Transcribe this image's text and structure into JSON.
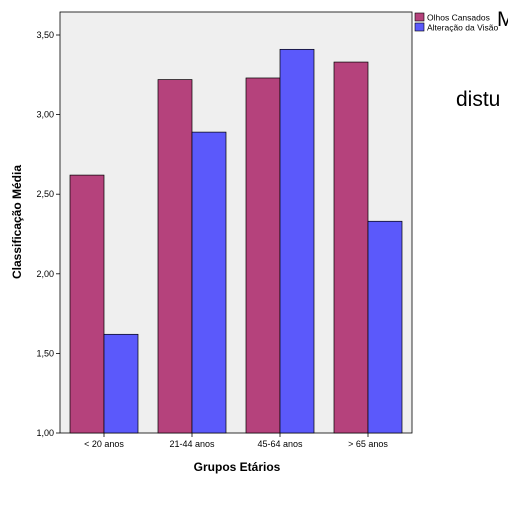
{
  "chart_data": {
    "type": "bar",
    "categories": [
      "< 20 anos",
      "21-44 anos",
      "45-64 anos",
      "> 65 anos"
    ],
    "series": [
      {
        "name": "Olhos Cansados",
        "values": [
          2.62,
          3.22,
          3.23,
          3.33
        ],
        "color": "#b5427c"
      },
      {
        "name": "Alteração da Visão",
        "values": [
          1.62,
          2.89,
          3.41,
          2.33
        ],
        "color": "#5b59fb"
      }
    ],
    "xlabel": "Grupos Etários",
    "ylabel": "Classificação Média",
    "ylim": [
      1.0,
      3.5
    ],
    "yticks": [
      "1,00",
      "1,50",
      "2,00",
      "2,50",
      "3,00",
      "3,50"
    ],
    "legend_position": "top-right",
    "grid": false,
    "plot_background": "#efefef"
  },
  "overflow_text": {
    "top": "M",
    "middle": "distu"
  }
}
